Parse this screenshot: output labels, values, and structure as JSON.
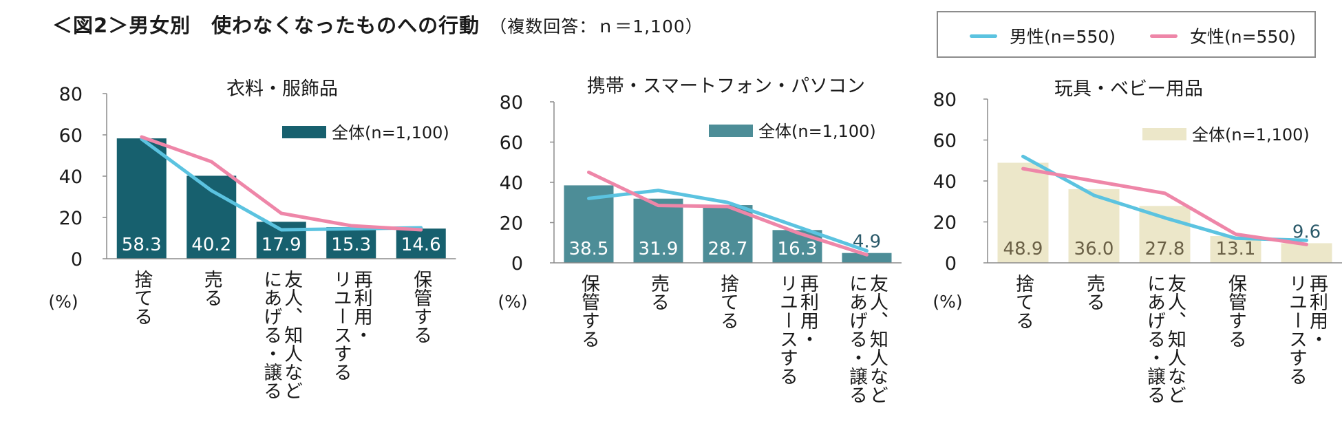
{
  "title": {
    "main": "＜図2＞男女別　使わなくなったものへの行動",
    "sub": "（複数回答：ｎ＝1,100）"
  },
  "legend": {
    "male": "男性(n=550)",
    "female": "女性(n=550)"
  },
  "colors": {
    "male_line": "#5bc3e0",
    "female_line": "#ee86a8",
    "axis": "#8c8c8c"
  },
  "chart_data": [
    {
      "type": "bar",
      "title": "衣料・服飾品",
      "ylabel": "(%)",
      "ylim": [
        0,
        80
      ],
      "yticks": [
        "0",
        "20",
        "40",
        "60",
        "80"
      ],
      "legend_label": "全体(n=1,100)",
      "bar_color": "#17606e",
      "label_color": "#ffffff",
      "categories": [
        "捨てる",
        "売る",
        "友人、知人などにあげる・譲る",
        "再利用・リユースする",
        "保管する"
      ],
      "category_lines": [
        [
          "捨てる"
        ],
        [
          "売る"
        ],
        [
          "友人、知人など",
          "にあげる・譲る"
        ],
        [
          "再利用・",
          "リユースする"
        ],
        [
          "保管する"
        ]
      ],
      "values": [
        58.3,
        40.2,
        17.9,
        15.3,
        14.6
      ],
      "value_labels": [
        "58.3",
        "40.2",
        "17.9",
        "15.3",
        "14.6"
      ],
      "series": [
        {
          "name": "男性(n=550)",
          "values": [
            58.0,
            33.0,
            14.0,
            14.5,
            15.0
          ]
        },
        {
          "name": "女性(n=550)",
          "values": [
            59.0,
            47.0,
            22.0,
            16.0,
            14.0
          ]
        }
      ]
    },
    {
      "type": "bar",
      "title": "携帯・スマートフォン・パソコン",
      "ylabel": "(%)",
      "ylim": [
        0,
        80
      ],
      "yticks": [
        "0",
        "20",
        "40",
        "60",
        "80"
      ],
      "legend_label": "全体(n=1,100)",
      "bar_color": "#4d8d97",
      "label_color": "#ffffff",
      "categories": [
        "保管する",
        "売る",
        "捨てる",
        "再利用・リユースする",
        "友人、知人などにあげる・譲る"
      ],
      "category_lines": [
        [
          "保管する"
        ],
        [
          "売る"
        ],
        [
          "捨てる"
        ],
        [
          "再利用・",
          "リユースする"
        ],
        [
          "友人、知人など",
          "にあげる・譲る"
        ]
      ],
      "values": [
        38.5,
        31.9,
        28.7,
        16.3,
        4.9
      ],
      "value_labels": [
        "38.5",
        "31.9",
        "28.7",
        "16.3",
        "4.9"
      ],
      "series": [
        {
          "name": "男性(n=550)",
          "values": [
            32.0,
            36.0,
            30.0,
            18.0,
            6.0
          ]
        },
        {
          "name": "女性(n=550)",
          "values": [
            45.0,
            28.5,
            28.0,
            15.0,
            4.0
          ]
        }
      ]
    },
    {
      "type": "bar",
      "title": "玩具・ベビー用品",
      "ylabel": "(%)",
      "ylim": [
        0,
        80
      ],
      "yticks": [
        "0",
        "20",
        "40",
        "60",
        "80"
      ],
      "legend_label": "全体(n=1,100)",
      "bar_color": "#ece7c9",
      "label_color": "#6a6046",
      "categories": [
        "捨てる",
        "売る",
        "友人、知人などにあげる・譲る",
        "保管する",
        "再利用・リユースする"
      ],
      "category_lines": [
        [
          "捨てる"
        ],
        [
          "売る"
        ],
        [
          "友人、知人など",
          "にあげる・譲る"
        ],
        [
          "保管する"
        ],
        [
          "再利用・",
          "リユースする"
        ]
      ],
      "values": [
        48.9,
        36.0,
        27.8,
        13.1,
        9.6
      ],
      "value_labels": [
        "48.9",
        "36.0",
        "27.8",
        "13.1",
        "9.6"
      ],
      "series": [
        {
          "name": "男性(n=550)",
          "values": [
            52.0,
            33.0,
            22.0,
            12.0,
            11.0
          ]
        },
        {
          "name": "女性(n=550)",
          "values": [
            46.0,
            40.0,
            34.0,
            14.0,
            9.0
          ]
        }
      ]
    }
  ]
}
